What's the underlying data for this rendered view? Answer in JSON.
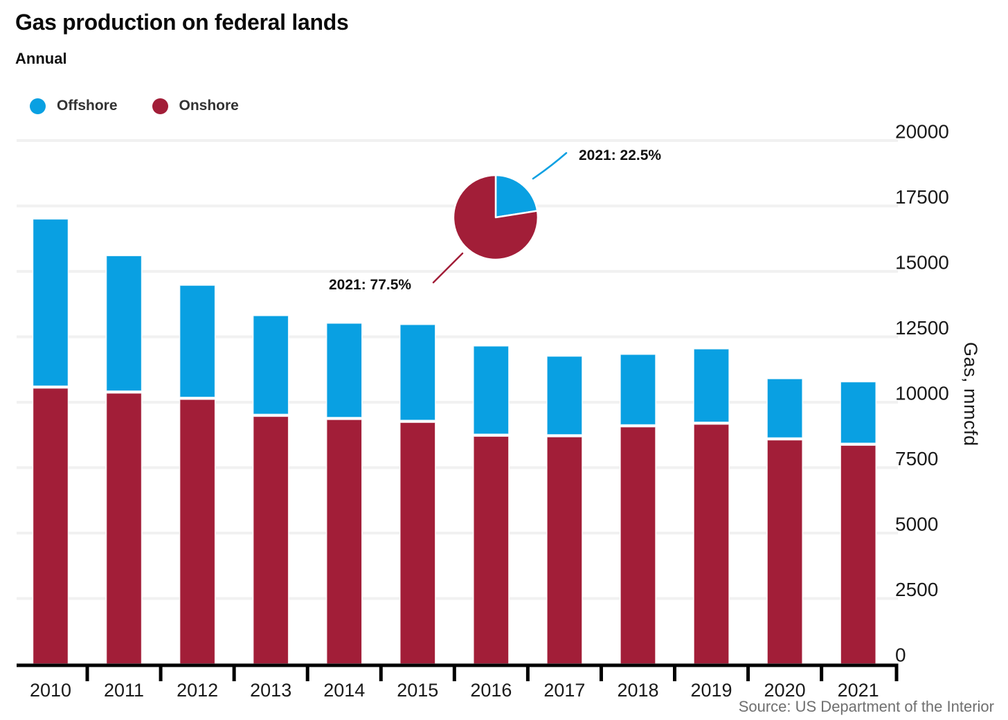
{
  "header": {
    "title": "Gas production on federal lands",
    "subtitle": "Annual"
  },
  "legend": {
    "items": [
      {
        "label": "Offshore",
        "color": "#09a0e2"
      },
      {
        "label": "Onshore",
        "color": "#a21e38"
      }
    ]
  },
  "chart_data": [
    {
      "type": "bar",
      "stacked": true,
      "title": "Gas production on federal lands",
      "subtitle": "Annual",
      "categories": [
        "2010",
        "2011",
        "2012",
        "2013",
        "2014",
        "2015",
        "2016",
        "2017",
        "2018",
        "2019",
        "2020",
        "2021"
      ],
      "series": [
        {
          "name": "Offshore",
          "color": "#09a0e2",
          "values": [
            6460,
            5250,
            4360,
            3850,
            3680,
            3740,
            3450,
            3080,
            2770,
            2880,
            2340,
            2425
          ]
        },
        {
          "name": "Onshore",
          "color": "#a21e38",
          "values": [
            10540,
            10350,
            10110,
            9460,
            9340,
            9230,
            8700,
            8680,
            9060,
            9160,
            8560,
            8355
          ]
        }
      ],
      "xlabel": "",
      "ylabel": "Gas, mmcfd",
      "ylim": [
        0,
        20000
      ],
      "yticks": [
        0,
        2500,
        5000,
        7500,
        10000,
        12500,
        15000,
        17500,
        20000
      ],
      "grid": true,
      "legend_position": "top-left",
      "y_axis_side": "right"
    },
    {
      "type": "pie",
      "slices": [
        {
          "name": "Offshore",
          "value": 22.5,
          "color": "#09a0e2",
          "annotation": "2021: 22.5%"
        },
        {
          "name": "Onshore",
          "value": 77.5,
          "color": "#a21e38",
          "annotation": "2021: 77.5%"
        }
      ]
    }
  ],
  "source": "Source: US Department of the Interior"
}
